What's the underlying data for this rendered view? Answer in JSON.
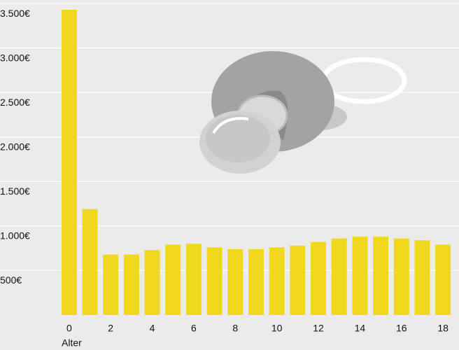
{
  "chart_data": {
    "type": "bar",
    "categories": [
      "0",
      null,
      "2",
      null,
      "4",
      null,
      "6",
      null,
      "8",
      null,
      "10",
      null,
      "12",
      null,
      "14",
      null,
      "16",
      null,
      "18"
    ],
    "values": [
      3430,
      1190,
      680,
      680,
      730,
      790,
      800,
      760,
      740,
      740,
      760,
      780,
      820,
      860,
      880,
      880,
      860,
      840,
      790
    ],
    "color": "#f0d81c",
    "x_label": "Alter",
    "ylim": [
      0,
      3540
    ],
    "yticks": [
      {
        "value": 500,
        "label": "500€"
      },
      {
        "value": 1000,
        "label": "1.000€"
      },
      {
        "value": 1500,
        "label": "1.500€"
      },
      {
        "value": 2000,
        "label": "2.000€"
      },
      {
        "value": 2500,
        "label": "2.500€"
      },
      {
        "value": 3000,
        "label": "3.000€"
      },
      {
        "value": 3500,
        "label": "3.500€"
      }
    ],
    "grid": true
  }
}
